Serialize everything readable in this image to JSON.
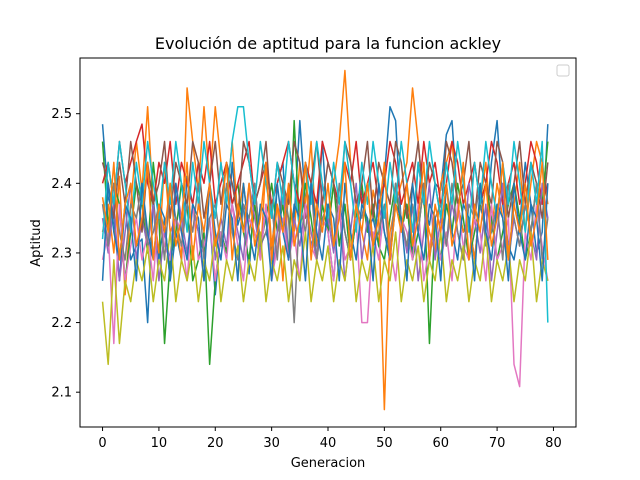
{
  "chart_data": {
    "type": "line",
    "title": "Evolución de aptitud para la funcion ackley",
    "xlabel": "Generacion",
    "ylabel": "Aptitud",
    "xlim": [
      -4,
      84
    ],
    "ylim": [
      2.05,
      2.58
    ],
    "xticks": [
      0,
      10,
      20,
      30,
      40,
      50,
      60,
      70,
      80
    ],
    "yticks": [
      2.1,
      2.2,
      2.3,
      2.4,
      2.5
    ],
    "xtick_labels": [
      "0",
      "10",
      "20",
      "30",
      "40",
      "50",
      "60",
      "70",
      "80"
    ],
    "ytick_labels": [
      "2.1",
      "2.2",
      "2.3",
      "2.4",
      "2.5"
    ],
    "grid": false,
    "legend": "top-right, empty",
    "palette": [
      "#1f77b4",
      "#ff7f0e",
      "#2ca02c",
      "#d62728",
      "#9467bd",
      "#8c564b",
      "#e377c2",
      "#7f7f7f",
      "#bcbd22",
      "#17becf"
    ],
    "x": [
      0,
      1,
      2,
      3,
      4,
      5,
      6,
      7,
      8,
      9,
      10,
      11,
      12,
      13,
      14,
      15,
      16,
      17,
      18,
      19,
      20,
      21,
      22,
      23,
      24,
      25,
      26,
      27,
      28,
      29,
      30,
      31,
      32,
      33,
      34,
      35,
      36,
      37,
      38,
      39,
      40,
      41,
      42,
      43,
      44,
      45,
      46,
      47,
      48,
      49,
      50,
      51,
      52,
      53,
      54,
      55,
      56,
      57,
      58,
      59,
      60,
      61,
      62,
      63,
      64,
      65,
      66,
      67,
      68,
      69,
      70,
      71,
      72,
      73,
      74,
      75,
      76,
      77,
      78,
      79
    ],
    "series": [
      {
        "values": [
          2.485,
          2.38,
          2.35,
          2.26,
          2.37,
          2.29,
          2.31,
          2.32,
          2.2,
          2.38,
          2.29,
          2.35,
          2.26,
          2.33,
          2.29,
          2.41,
          2.37,
          2.33,
          2.3,
          2.35,
          2.24,
          2.33,
          2.3,
          2.43,
          2.34,
          2.37,
          2.27,
          2.4,
          2.31,
          2.33,
          2.3,
          2.4,
          2.43,
          2.29,
          2.35,
          2.49,
          2.37,
          2.31,
          2.34,
          2.46,
          2.33,
          2.26,
          2.37,
          2.33,
          2.29,
          2.35,
          2.39,
          2.33,
          2.35,
          2.31,
          2.41,
          2.51,
          2.49,
          2.34,
          2.37,
          2.3,
          2.43,
          2.37,
          2.34,
          2.4,
          2.39,
          2.47,
          2.49,
          2.37,
          2.33,
          2.35,
          2.29,
          2.37,
          2.33,
          2.43,
          2.49,
          2.37,
          2.31,
          2.29,
          2.34,
          2.43,
          2.37,
          2.3,
          2.33,
          2.485
        ]
      },
      {
        "values": [
          2.33,
          2.37,
          2.3,
          2.41,
          2.24,
          2.37,
          2.46,
          2.39,
          2.51,
          2.37,
          2.3,
          2.43,
          2.33,
          2.35,
          2.29,
          2.537,
          2.46,
          2.39,
          2.51,
          2.4,
          2.51,
          2.43,
          2.37,
          2.46,
          2.35,
          2.4,
          2.33,
          2.37,
          2.29,
          2.43,
          2.31,
          2.37,
          2.26,
          2.39,
          2.33,
          2.43,
          2.37,
          2.46,
          2.31,
          2.35,
          2.33,
          2.4,
          2.46,
          2.562,
          2.43,
          2.37,
          2.33,
          2.29,
          2.39,
          2.35,
          2.075,
          2.33,
          2.37,
          2.4,
          2.43,
          2.537,
          2.46,
          2.37,
          2.33,
          2.3,
          2.4,
          2.43,
          2.46,
          2.37,
          2.33,
          2.35,
          2.29,
          2.37,
          2.43,
          2.33,
          2.4,
          2.35,
          2.29,
          2.37,
          2.43,
          2.33,
          2.4,
          2.46,
          2.43,
          2.37
        ]
      },
      {
        "values": [
          2.46,
          2.34,
          2.4,
          2.37,
          2.26,
          2.33,
          2.4,
          2.37,
          2.3,
          2.43,
          2.35,
          2.17,
          2.29,
          2.33,
          2.4,
          2.37,
          2.26,
          2.29,
          2.33,
          2.14,
          2.26,
          2.33,
          2.3,
          2.37,
          2.4,
          2.33,
          2.29,
          2.37,
          2.31,
          2.35,
          2.4,
          2.33,
          2.37,
          2.29,
          2.49,
          2.33,
          2.4,
          2.35,
          2.29,
          2.37,
          2.33,
          2.4,
          2.31,
          2.37,
          2.29,
          2.35,
          2.4,
          2.33,
          2.37,
          2.31,
          2.29,
          2.35,
          2.4,
          2.33,
          2.37,
          2.29,
          2.33,
          2.4,
          2.17,
          2.35,
          2.29,
          2.37,
          2.33,
          2.4,
          2.35,
          2.29,
          2.33,
          2.37,
          2.4,
          2.35,
          2.29,
          2.33,
          2.37,
          2.4,
          2.35,
          2.29,
          2.33,
          2.4,
          2.37,
          2.46
        ]
      },
      {
        "values": [
          2.4,
          2.43,
          2.37,
          2.46,
          2.4,
          2.43,
          2.46,
          2.485,
          2.4,
          2.37,
          2.43,
          2.4,
          2.46,
          2.37,
          2.43,
          2.4,
          2.37,
          2.43,
          2.4,
          2.46,
          2.37,
          2.4,
          2.43,
          2.37,
          2.4,
          2.43,
          2.46,
          2.37,
          2.4,
          2.43,
          2.37,
          2.4,
          2.43,
          2.46,
          2.4,
          2.37,
          2.43,
          2.4,
          2.37,
          2.46,
          2.43,
          2.4,
          2.37,
          2.43,
          2.4,
          2.46,
          2.37,
          2.4,
          2.43,
          2.37,
          2.4,
          2.46,
          2.43,
          2.37,
          2.4,
          2.43,
          2.37,
          2.46,
          2.4,
          2.43,
          2.37,
          2.4,
          2.46,
          2.43,
          2.37,
          2.4,
          2.43,
          2.37,
          2.4,
          2.46,
          2.43,
          2.37,
          2.4,
          2.43,
          2.37,
          2.4,
          2.46,
          2.43,
          2.37,
          2.4
        ]
      },
      {
        "values": [
          2.35,
          2.3,
          2.37,
          2.26,
          2.33,
          2.4,
          2.29,
          2.35,
          2.31,
          2.37,
          2.26,
          2.33,
          2.29,
          2.4,
          2.35,
          2.3,
          2.37,
          2.33,
          2.26,
          2.4,
          2.29,
          2.35,
          2.31,
          2.37,
          2.33,
          2.29,
          2.4,
          2.35,
          2.3,
          2.37,
          2.26,
          2.33,
          2.4,
          2.29,
          2.35,
          2.31,
          2.37,
          2.33,
          2.29,
          2.4,
          2.35,
          2.3,
          2.37,
          2.26,
          2.33,
          2.4,
          2.29,
          2.35,
          2.31,
          2.37,
          2.33,
          2.29,
          2.4,
          2.35,
          2.3,
          2.37,
          2.26,
          2.33,
          2.4,
          2.29,
          2.35,
          2.31,
          2.37,
          2.33,
          2.29,
          2.4,
          2.35,
          2.3,
          2.37,
          2.26,
          2.33,
          2.4,
          2.29,
          2.35,
          2.31,
          2.37,
          2.33,
          2.29,
          2.4,
          2.35
        ]
      },
      {
        "values": [
          2.43,
          2.4,
          2.35,
          2.43,
          2.37,
          2.46,
          2.4,
          2.33,
          2.43,
          2.37,
          2.4,
          2.46,
          2.35,
          2.43,
          2.4,
          2.37,
          2.46,
          2.43,
          2.35,
          2.4,
          2.46,
          2.37,
          2.43,
          2.4,
          2.35,
          2.46,
          2.43,
          2.37,
          2.4,
          2.46,
          2.35,
          2.43,
          2.4,
          2.37,
          2.46,
          2.43,
          2.35,
          2.4,
          2.46,
          2.37,
          2.43,
          2.4,
          2.35,
          2.46,
          2.43,
          2.37,
          2.4,
          2.46,
          2.35,
          2.43,
          2.4,
          2.37,
          2.46,
          2.43,
          2.35,
          2.4,
          2.46,
          2.37,
          2.43,
          2.4,
          2.35,
          2.46,
          2.43,
          2.37,
          2.4,
          2.46,
          2.35,
          2.43,
          2.4,
          2.37,
          2.46,
          2.43,
          2.35,
          2.4,
          2.46,
          2.37,
          2.43,
          2.4,
          2.35,
          2.43
        ]
      },
      {
        "values": [
          2.29,
          2.33,
          2.17,
          2.37,
          2.26,
          2.31,
          2.35,
          2.29,
          2.33,
          2.26,
          2.37,
          2.31,
          2.29,
          2.35,
          2.33,
          2.26,
          2.37,
          2.29,
          2.31,
          2.35,
          2.26,
          2.33,
          2.29,
          2.37,
          2.31,
          2.26,
          2.35,
          2.33,
          2.29,
          2.37,
          2.26,
          2.31,
          2.35,
          2.29,
          2.33,
          2.26,
          2.37,
          2.31,
          2.29,
          2.35,
          2.33,
          2.26,
          2.37,
          2.29,
          2.31,
          2.35,
          2.2,
          2.2,
          2.33,
          2.29,
          2.37,
          2.31,
          2.26,
          2.35,
          2.33,
          2.29,
          2.37,
          2.26,
          2.31,
          2.35,
          2.29,
          2.33,
          2.26,
          2.37,
          2.31,
          2.29,
          2.35,
          2.33,
          2.26,
          2.37,
          2.29,
          2.31,
          2.35,
          2.14,
          2.108,
          2.33,
          2.29,
          2.37,
          2.31,
          2.26
        ]
      },
      {
        "values": [
          2.37,
          2.31,
          2.4,
          2.33,
          2.29,
          2.37,
          2.35,
          2.4,
          2.31,
          2.33,
          2.37,
          2.29,
          2.4,
          2.35,
          2.31,
          2.37,
          2.33,
          2.4,
          2.29,
          2.35,
          2.37,
          2.31,
          2.4,
          2.33,
          2.29,
          2.37,
          2.35,
          2.4,
          2.31,
          2.33,
          2.37,
          2.29,
          2.4,
          2.35,
          2.2,
          2.37,
          2.33,
          2.4,
          2.29,
          2.35,
          2.37,
          2.31,
          2.4,
          2.33,
          2.29,
          2.37,
          2.35,
          2.4,
          2.31,
          2.33,
          2.37,
          2.29,
          2.4,
          2.35,
          2.31,
          2.37,
          2.33,
          2.4,
          2.29,
          2.35,
          2.37,
          2.31,
          2.4,
          2.33,
          2.29,
          2.37,
          2.35,
          2.4,
          2.31,
          2.33,
          2.37,
          2.29,
          2.4,
          2.35,
          2.31,
          2.37,
          2.33,
          2.4,
          2.29,
          2.35
        ]
      },
      {
        "values": [
          2.23,
          2.14,
          2.29,
          2.17,
          2.26,
          2.23,
          2.29,
          2.26,
          2.31,
          2.23,
          2.29,
          2.26,
          2.33,
          2.23,
          2.29,
          2.26,
          2.31,
          2.23,
          2.29,
          2.26,
          2.33,
          2.23,
          2.29,
          2.26,
          2.31,
          2.23,
          2.29,
          2.26,
          2.33,
          2.23,
          2.29,
          2.26,
          2.31,
          2.23,
          2.29,
          2.26,
          2.33,
          2.23,
          2.29,
          2.26,
          2.31,
          2.23,
          2.29,
          2.26,
          2.33,
          2.23,
          2.29,
          2.26,
          2.31,
          2.23,
          2.29,
          2.26,
          2.33,
          2.23,
          2.29,
          2.26,
          2.31,
          2.23,
          2.29,
          2.26,
          2.33,
          2.23,
          2.29,
          2.26,
          2.31,
          2.23,
          2.29,
          2.26,
          2.33,
          2.23,
          2.29,
          2.26,
          2.31,
          2.23,
          2.29,
          2.26,
          2.33,
          2.23,
          2.29,
          2.26
        ]
      },
      {
        "values": [
          2.32,
          2.43,
          2.37,
          2.46,
          2.4,
          2.33,
          2.43,
          2.37,
          2.46,
          2.4,
          2.35,
          2.43,
          2.37,
          2.46,
          2.4,
          2.33,
          2.43,
          2.37,
          2.46,
          2.4,
          2.35,
          2.43,
          2.37,
          2.46,
          2.51,
          2.51,
          2.43,
          2.37,
          2.46,
          2.4,
          2.35,
          2.43,
          2.37,
          2.46,
          2.4,
          2.33,
          2.43,
          2.37,
          2.46,
          2.4,
          2.35,
          2.43,
          2.37,
          2.46,
          2.4,
          2.33,
          2.43,
          2.37,
          2.46,
          2.4,
          2.35,
          2.43,
          2.37,
          2.46,
          2.4,
          2.33,
          2.43,
          2.37,
          2.46,
          2.4,
          2.35,
          2.43,
          2.37,
          2.46,
          2.4,
          2.33,
          2.43,
          2.37,
          2.46,
          2.4,
          2.35,
          2.43,
          2.37,
          2.46,
          2.4,
          2.33,
          2.43,
          2.37,
          2.46,
          2.2
        ]
      },
      {
        "values": [
          2.26,
          2.4,
          2.33,
          2.29,
          2.37,
          2.35,
          2.26,
          2.4,
          2.33,
          2.29,
          2.37,
          2.35,
          2.26,
          2.4,
          2.33,
          2.29,
          2.37,
          2.35,
          2.26,
          2.4,
          2.33,
          2.29,
          2.37,
          2.35,
          2.26,
          2.4,
          2.33,
          2.29,
          2.37,
          2.35,
          2.26,
          2.4,
          2.33,
          2.29,
          2.37,
          2.35,
          2.26,
          2.4,
          2.33,
          2.29,
          2.37,
          2.35,
          2.26,
          2.4,
          2.33,
          2.29,
          2.37,
          2.35,
          2.26,
          2.4,
          2.33,
          2.29,
          2.37,
          2.35,
          2.26,
          2.4,
          2.33,
          2.29,
          2.37,
          2.35,
          2.26,
          2.4,
          2.33,
          2.29,
          2.37,
          2.35,
          2.26,
          2.4,
          2.33,
          2.29,
          2.37,
          2.35,
          2.26,
          2.4,
          2.33,
          2.29,
          2.37,
          2.35,
          2.26,
          2.4
        ]
      },
      {
        "values": [
          2.38,
          2.33,
          2.43,
          2.29,
          2.37,
          2.4,
          2.31,
          2.35,
          2.43,
          2.29,
          2.37,
          2.33,
          2.4,
          2.31,
          2.35,
          2.43,
          2.29,
          2.37,
          2.33,
          2.4,
          2.31,
          2.35,
          2.43,
          2.29,
          2.37,
          2.33,
          2.4,
          2.31,
          2.35,
          2.43,
          2.29,
          2.37,
          2.33,
          2.4,
          2.31,
          2.35,
          2.43,
          2.29,
          2.37,
          2.33,
          2.4,
          2.31,
          2.35,
          2.43,
          2.29,
          2.37,
          2.33,
          2.4,
          2.31,
          2.35,
          2.43,
          2.29,
          2.37,
          2.33,
          2.4,
          2.31,
          2.35,
          2.43,
          2.29,
          2.37,
          2.33,
          2.4,
          2.31,
          2.35,
          2.43,
          2.29,
          2.37,
          2.33,
          2.4,
          2.31,
          2.35,
          2.43,
          2.29,
          2.37,
          2.33,
          2.4,
          2.31,
          2.35,
          2.43,
          2.29
        ]
      }
    ]
  }
}
